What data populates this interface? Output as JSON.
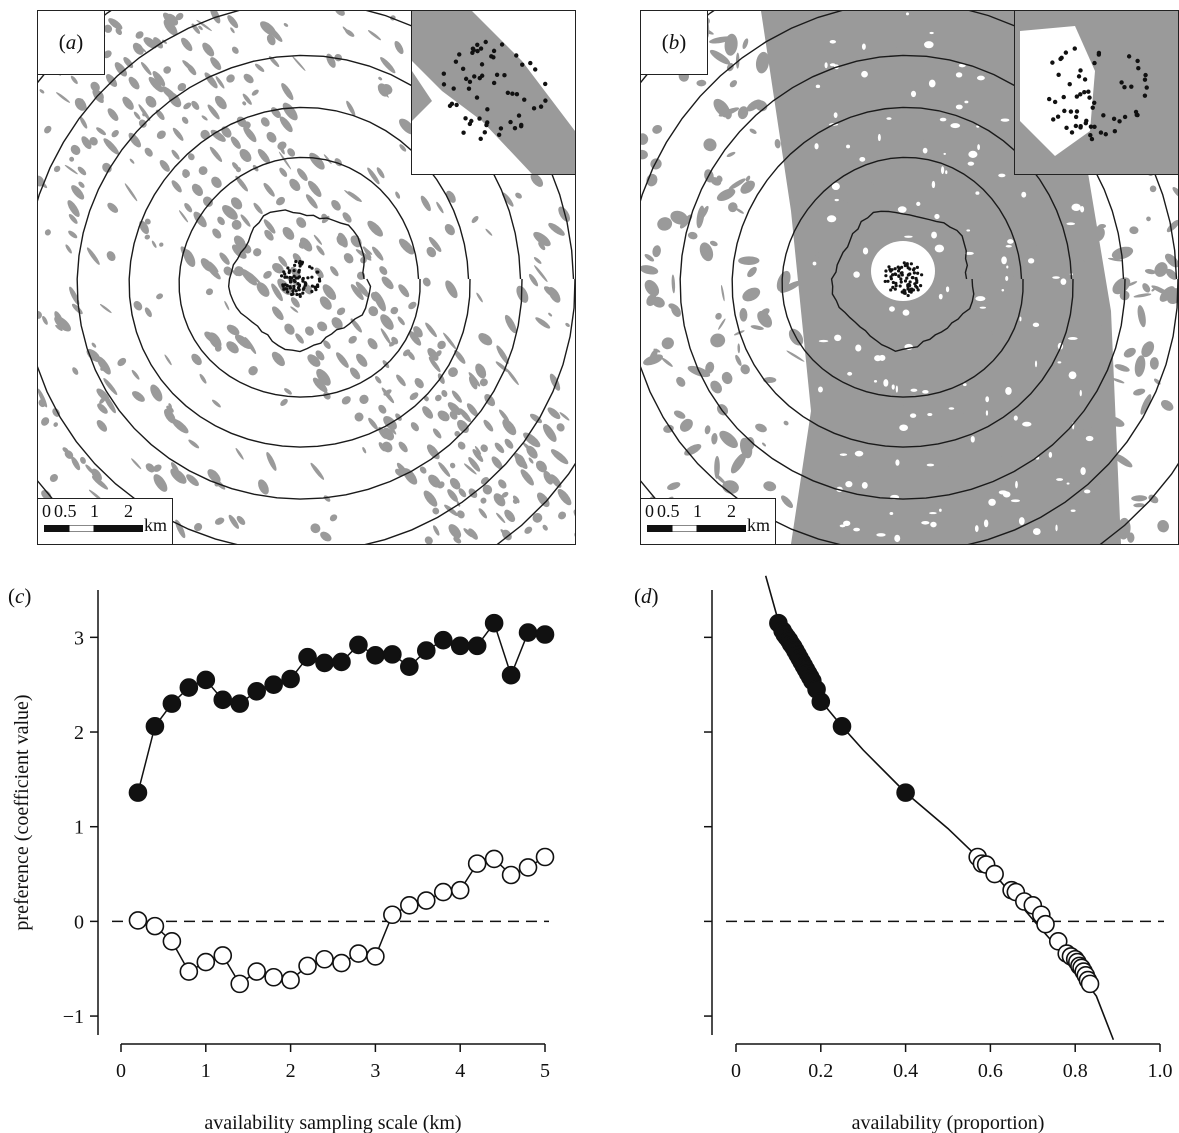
{
  "maps": [
    {
      "id": "a",
      "tag": "a",
      "scalebar": {
        "ticks": [
          "0",
          "0.5",
          "1",
          "2"
        ],
        "unit": "km"
      }
    },
    {
      "id": "b",
      "tag": "b",
      "scalebar": {
        "ticks": [
          "0",
          "0.5",
          "1",
          "2"
        ],
        "unit": "km"
      }
    }
  ],
  "colors": {
    "habitat": "#9a9a9a",
    "line": "#1a1a1a",
    "point": "#111111"
  },
  "chart_data": [
    {
      "panel": "c",
      "type": "line",
      "xlabel": "availability sampling scale (km)",
      "ylabel": "preference (coefficient value)",
      "xlim": [
        0,
        5
      ],
      "ylim": [
        -1.2,
        3.5
      ],
      "xticks": [
        "0",
        "1",
        "2",
        "3",
        "4",
        "5"
      ],
      "yticks": [
        "−1",
        "0",
        "1",
        "2",
        "3"
      ],
      "reference_line": {
        "y": 0,
        "style": "dashed"
      },
      "series": [
        {
          "marker": "filled",
          "x": [
            0.2,
            0.4,
            0.6,
            0.8,
            1.0,
            1.2,
            1.4,
            1.6,
            1.8,
            2.0,
            2.2,
            2.4,
            2.6,
            2.8,
            3.0,
            3.2,
            3.4,
            3.6,
            3.8,
            4.0,
            4.2,
            4.4,
            4.6,
            4.8,
            5.0
          ],
          "y": [
            1.36,
            2.06,
            2.3,
            2.47,
            2.55,
            2.34,
            2.3,
            2.43,
            2.5,
            2.56,
            2.79,
            2.73,
            2.74,
            2.92,
            2.81,
            2.82,
            2.69,
            2.86,
            2.97,
            2.91,
            2.91,
            3.15,
            2.6,
            3.05,
            3.03
          ]
        },
        {
          "marker": "open",
          "x": [
            0.2,
            0.4,
            0.6,
            0.8,
            1.0,
            1.2,
            1.4,
            1.6,
            1.8,
            2.0,
            2.2,
            2.4,
            2.6,
            2.8,
            3.0,
            3.2,
            3.4,
            3.6,
            3.8,
            4.0,
            4.2,
            4.4,
            4.6,
            4.8,
            5.0
          ],
          "y": [
            0.01,
            -0.05,
            -0.21,
            -0.53,
            -0.43,
            -0.36,
            -0.66,
            -0.53,
            -0.59,
            -0.62,
            -0.47,
            -0.4,
            -0.44,
            -0.34,
            -0.37,
            0.07,
            0.17,
            0.22,
            0.31,
            0.33,
            0.61,
            0.66,
            0.49,
            0.57,
            0.68
          ]
        }
      ]
    },
    {
      "panel": "d",
      "type": "scatter",
      "xlabel": "availability (proportion)",
      "xlim": [
        0,
        1.0
      ],
      "ylim": [
        -1.2,
        3.5
      ],
      "xticks": [
        "0",
        "0.2",
        "0.4",
        "0.6",
        "0.8",
        "1.0"
      ],
      "reference_line": {
        "y": 0,
        "style": "dashed"
      },
      "fit_curve": {
        "x": [
          0.07,
          0.1,
          0.15,
          0.2,
          0.25,
          0.3,
          0.4,
          0.5,
          0.6,
          0.7,
          0.8,
          0.85,
          0.89
        ],
        "y": [
          3.65,
          3.17,
          2.72,
          2.33,
          2.06,
          1.81,
          1.36,
          0.98,
          0.55,
          0.02,
          -0.49,
          -0.79,
          -1.3
        ]
      },
      "series": [
        {
          "marker": "filled",
          "x": [
            0.1,
            0.11,
            0.115,
            0.12,
            0.125,
            0.13,
            0.135,
            0.14,
            0.145,
            0.15,
            0.155,
            0.16,
            0.165,
            0.17,
            0.175,
            0.18,
            0.19,
            0.2,
            0.25,
            0.4
          ],
          "y": [
            3.15,
            3.07,
            3.03,
            3.0,
            2.97,
            2.93,
            2.9,
            2.86,
            2.82,
            2.78,
            2.74,
            2.7,
            2.66,
            2.62,
            2.58,
            2.54,
            2.45,
            2.32,
            2.06,
            1.36
          ]
        },
        {
          "marker": "open",
          "x": [
            0.57,
            0.58,
            0.59,
            0.61,
            0.65,
            0.66,
            0.68,
            0.7,
            0.72,
            0.73,
            0.76,
            0.78,
            0.79,
            0.8,
            0.805,
            0.81,
            0.815,
            0.82,
            0.825,
            0.83,
            0.835
          ],
          "y": [
            0.68,
            0.61,
            0.6,
            0.5,
            0.33,
            0.31,
            0.21,
            0.17,
            0.07,
            -0.03,
            -0.21,
            -0.34,
            -0.37,
            -0.4,
            -0.43,
            -0.47,
            -0.49,
            -0.53,
            -0.57,
            -0.62,
            -0.66
          ]
        }
      ]
    }
  ]
}
